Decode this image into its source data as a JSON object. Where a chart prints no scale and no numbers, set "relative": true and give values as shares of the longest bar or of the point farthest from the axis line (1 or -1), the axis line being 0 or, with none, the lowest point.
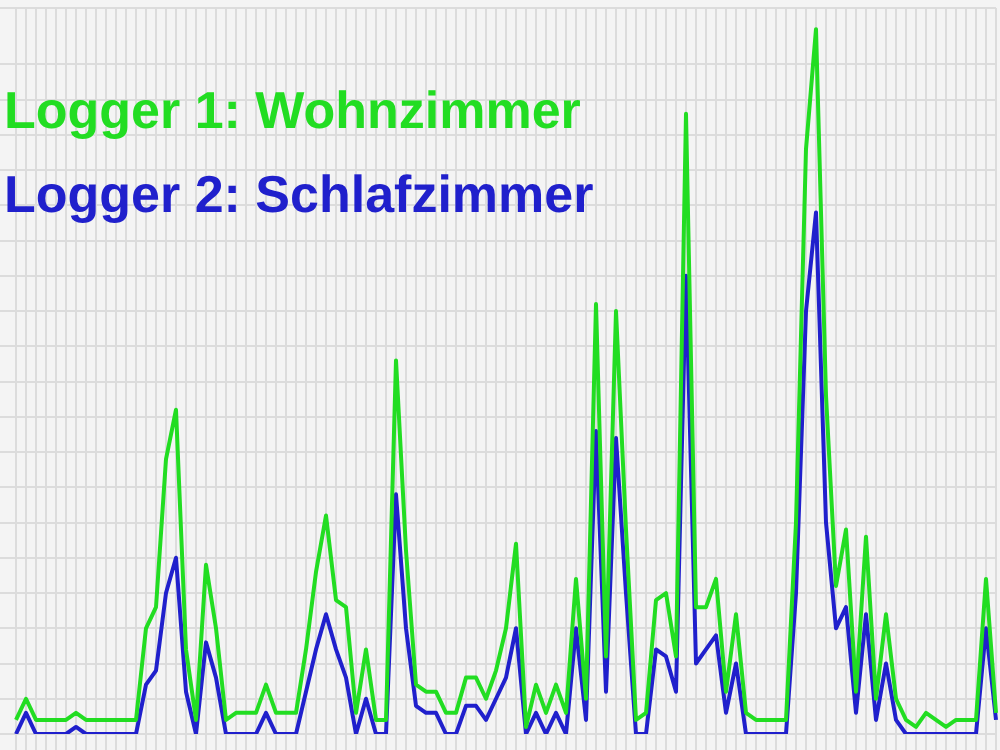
{
  "chart_data": {
    "type": "line",
    "relative": true,
    "grid": true,
    "legend": false,
    "marker": "none",
    "categories": [
      null,
      null,
      null,
      null,
      null,
      null,
      null,
      null,
      null,
      null,
      null,
      null,
      null,
      null,
      null,
      null,
      null,
      null,
      null,
      null,
      null,
      null,
      null,
      null,
      null,
      null,
      null,
      null,
      null,
      null,
      null,
      null,
      null,
      null,
      null,
      null,
      null,
      null,
      null,
      null,
      null,
      null,
      null,
      null,
      null,
      null,
      null,
      null,
      null,
      null,
      null,
      null,
      null,
      null,
      null,
      null,
      null,
      null,
      null,
      null,
      null,
      null,
      null,
      null,
      null,
      null,
      null,
      null,
      null,
      null,
      null,
      null,
      null,
      null,
      null,
      null,
      null,
      null,
      null,
      null,
      null,
      null,
      null,
      null,
      null,
      null,
      null,
      null,
      null,
      null,
      null,
      null,
      null,
      null,
      null,
      null,
      null,
      null,
      null
    ],
    "series": [
      {
        "name": "Logger 1: Wohnzimmer",
        "color": "#22dd22",
        "values": [
          0.02,
          0.05,
          0.02,
          0.02,
          0.02,
          0.02,
          0.03,
          0.02,
          0.02,
          0.02,
          0.02,
          0.02,
          0.02,
          0.15,
          0.18,
          0.39,
          0.46,
          0.12,
          0.02,
          0.24,
          0.15,
          0.02,
          0.03,
          0.03,
          0.03,
          0.07,
          0.03,
          0.03,
          0.03,
          0.12,
          0.23,
          0.31,
          0.19,
          0.18,
          0.03,
          0.12,
          0.02,
          0.02,
          0.53,
          0.26,
          0.07,
          0.06,
          0.06,
          0.03,
          0.03,
          0.08,
          0.08,
          0.05,
          0.09,
          0.15,
          0.27,
          0.01,
          0.07,
          0.03,
          0.07,
          0.03,
          0.22,
          0.05,
          0.61,
          0.11,
          0.6,
          0.29,
          0.02,
          0.03,
          0.19,
          0.2,
          0.11,
          0.88,
          0.18,
          0.18,
          0.22,
          0.06,
          0.17,
          0.03,
          0.02,
          0.02,
          0.02,
          0.02,
          0.3,
          0.83,
          1,
          0.48,
          0.21,
          0.29,
          0.06,
          0.28,
          0.05,
          0.17,
          0.05,
          0.02,
          0.01,
          0.03,
          0.02,
          0.01,
          0.02,
          0.02,
          0.02,
          0.22,
          0.03
        ]
      },
      {
        "name": "Logger 2: Schlafzimmer",
        "color": "#2020cc",
        "values": [
          0,
          0.03,
          0,
          0,
          0,
          0,
          0.01,
          0,
          0,
          0,
          0,
          0,
          0,
          0.07,
          0.09,
          0.2,
          0.25,
          0.06,
          0,
          0.13,
          0.08,
          0,
          0,
          0,
          0,
          0.03,
          0,
          0,
          0,
          0.06,
          0.12,
          0.17,
          0.12,
          0.08,
          0,
          0.05,
          0,
          0,
          0.34,
          0.15,
          0.04,
          0.03,
          0.03,
          0,
          0,
          0.04,
          0.04,
          0.02,
          0.05,
          0.08,
          0.15,
          0,
          0.03,
          0,
          0.03,
          0,
          0.15,
          0.02,
          0.43,
          0.06,
          0.42,
          0.2,
          0,
          0,
          0.12,
          0.11,
          0.06,
          0.65,
          0.1,
          0.12,
          0.14,
          0.03,
          0.1,
          0,
          0,
          0,
          0,
          0,
          0.2,
          0.6,
          0.74,
          0.3,
          0.15,
          0.18,
          0.03,
          0.17,
          0.02,
          0.1,
          0.02,
          0,
          0,
          0,
          0,
          0,
          0,
          0,
          0,
          0.15,
          0.02
        ]
      }
    ]
  }
}
